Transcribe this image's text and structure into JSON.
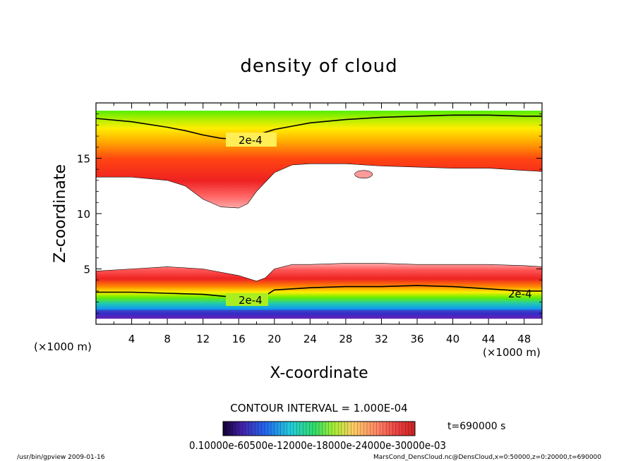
{
  "chart_data": {
    "type": "heatmap",
    "title": "density of cloud",
    "xlabel": "X-coordinate",
    "ylabel": "Z-coordinate",
    "x_unit": "(×1000 m)",
    "y_unit": "(×1000 m)",
    "xlim": [
      0,
      50
    ],
    "ylim": [
      0,
      20
    ],
    "x_ticks": [
      4,
      8,
      12,
      16,
      20,
      24,
      28,
      32,
      36,
      40,
      44,
      48
    ],
    "y_ticks": [
      5,
      10,
      15
    ],
    "contour_interval": "CONTOUR INTERVAL = 1.000E-04",
    "contour_label": "2e-4",
    "time_label": "t=690000 s",
    "colorbar_tick_text": "0.10000e-60500e-12000e-18000e-24000e-30000e-03",
    "footer_left": "/usr/bin/gpview   2009-01-16",
    "footer_right": "MarsCond_DensCloud.nc@DensCloud,x=0:50000,z=0:20000,t=690000",
    "upper_layer": {
      "x": [
        0,
        4,
        8,
        10,
        12,
        14,
        16,
        17,
        18,
        20,
        22,
        24,
        28,
        32,
        36,
        40,
        44,
        48,
        50
      ],
      "top": [
        19.3,
        19.3,
        19.3,
        19.3,
        19.3,
        19.3,
        19.3,
        19.3,
        19.3,
        19.3,
        19.3,
        19.3,
        19.3,
        19.3,
        19.3,
        19.3,
        19.3,
        19.3,
        19.3
      ],
      "bottom": [
        13.3,
        13.3,
        13.0,
        12.5,
        11.3,
        10.6,
        10.5,
        10.9,
        12.0,
        13.7,
        14.4,
        14.5,
        14.5,
        14.3,
        14.2,
        14.1,
        14.1,
        13.9,
        13.8
      ],
      "contour_2e4": [
        18.6,
        18.3,
        17.8,
        17.5,
        17.1,
        16.8,
        16.7,
        16.8,
        17.1,
        17.6,
        17.9,
        18.2,
        18.5,
        18.7,
        18.8,
        18.9,
        18.9,
        18.8,
        18.8
      ]
    },
    "lower_layer": {
      "x": [
        0,
        4,
        8,
        12,
        16,
        18,
        19,
        20,
        22,
        24,
        28,
        32,
        36,
        40,
        44,
        48,
        50
      ],
      "top": [
        4.8,
        5.0,
        5.2,
        5.0,
        4.4,
        3.9,
        4.2,
        5.0,
        5.4,
        5.4,
        5.5,
        5.5,
        5.4,
        5.4,
        5.4,
        5.3,
        5.2
      ],
      "bottom": [
        0.5,
        0.5,
        0.5,
        0.5,
        0.5,
        0.5,
        0.5,
        0.5,
        0.5,
        0.5,
        0.5,
        0.5,
        0.5,
        0.5,
        0.5,
        0.5,
        0.5
      ],
      "contour_2e4": [
        2.9,
        2.9,
        2.8,
        2.7,
        2.4,
        2.3,
        2.6,
        3.1,
        3.2,
        3.3,
        3.4,
        3.4,
        3.5,
        3.4,
        3.2,
        3.0,
        3.0
      ]
    },
    "small_patch": {
      "x": [
        29,
        31
      ],
      "z": [
        13.2,
        13.9
      ]
    },
    "colors": {
      "green": "#55ee00",
      "yellow": "#ffee00",
      "orange": "#ff9900",
      "red": "#ee2222",
      "pink": "#ff9a9a",
      "cyan": "#22ddcc",
      "blue": "#1133ee",
      "purple": "#7722bb"
    }
  }
}
